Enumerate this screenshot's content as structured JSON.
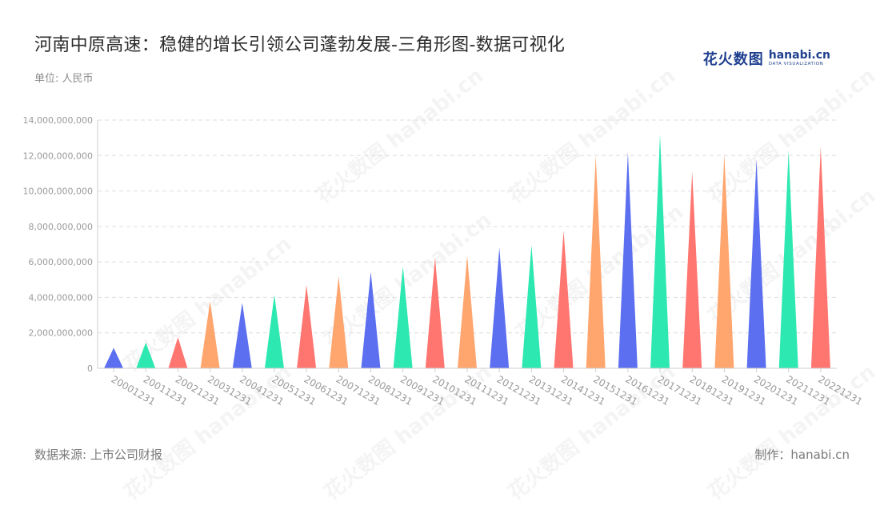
{
  "header": {
    "title": "河南中原高速：稳健的增长引领公司蓬勃发展-三角形图-数据可视化",
    "unit": "单位: 人民币"
  },
  "brand": {
    "cn": "花火数图",
    "en": "hanabi.cn",
    "tagline": "DATA VISUALIZATION"
  },
  "footer": {
    "source": "数据来源: 上市公司财报",
    "maker": "制作：hanabi.cn"
  },
  "watermark": "花火数图 hanabi.cn",
  "colors": {
    "palette": [
      "#5b6ff0",
      "#2de8b0",
      "#ff7570",
      "#ffa56e"
    ],
    "grid": "#dddddd",
    "axis_text": "#9a9a9a"
  },
  "chart_data": {
    "type": "triangle-bar",
    "title": "河南中原高速：稳健的增长引领公司蓬勃发展-三角形图-数据可视化",
    "ylabel": "单位: 人民币",
    "ylim": [
      0,
      14000000000
    ],
    "yticks": [
      0,
      2000000000,
      4000000000,
      6000000000,
      8000000000,
      10000000000,
      12000000000,
      14000000000
    ],
    "ytick_labels": [
      "0",
      "2,000,000,000",
      "4,000,000,000",
      "6,000,000,000",
      "8,000,000,000",
      "10,000,000,000",
      "12,000,000,000",
      "14,000,000,000"
    ],
    "grid": true,
    "categories": [
      "20001231",
      "20011231",
      "20021231",
      "20031231",
      "20041231",
      "20051231",
      "20061231",
      "20071231",
      "20081231",
      "20091231",
      "20101231",
      "20111231",
      "20121231",
      "20131231",
      "20141231",
      "20151231",
      "20161231",
      "20171231",
      "20181231",
      "20191231",
      "20201231",
      "20211231",
      "20221231"
    ],
    "values": [
      1150000000,
      1450000000,
      1750000000,
      3800000000,
      3700000000,
      4150000000,
      4700000000,
      5200000000,
      5450000000,
      5750000000,
      6250000000,
      6350000000,
      6800000000,
      6950000000,
      7750000000,
      12000000000,
      12200000000,
      13200000000,
      11100000000,
      12100000000,
      11800000000,
      12300000000,
      12500000000
    ]
  }
}
